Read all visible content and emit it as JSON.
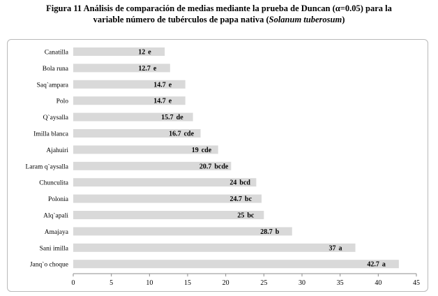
{
  "figure": {
    "title_line1": "Figura 11 Análisis de comparación de medias mediante la prueba de Duncan (α=0.05) para la",
    "title_line2": "variable número de tubérculos de papa nativa (",
    "title_species": "Solanum tuberosum",
    "title_close": ")"
  },
  "chart_data": {
    "type": "bar",
    "orientation": "horizontal",
    "title": "",
    "xlabel": "",
    "ylabel": "",
    "xlim": [
      0,
      45
    ],
    "xticks": [
      "0",
      "5",
      "10",
      "15",
      "20",
      "25",
      "30",
      "35",
      "40",
      "45"
    ],
    "grid": false,
    "bar_color": "#d9d9d9",
    "categories": [
      "Canatilla",
      "Bola runa",
      "Saq`ampara",
      "Polo",
      "Q`aysalla",
      "Imilla blanca",
      "Ajahuiri",
      "Laram q`aysalla",
      "Chunculita",
      "Polonia",
      "Alq`apali",
      "Amajaya",
      "Sani imilla",
      "Janq`o choque"
    ],
    "values": [
      12,
      12.7,
      14.7,
      14.7,
      15.7,
      16.7,
      19,
      20.7,
      24,
      24.7,
      25,
      28.7,
      37,
      42.7
    ],
    "value_labels": [
      "12",
      "12.7",
      "14.7",
      "14.7",
      "15.7",
      "16.7",
      "19",
      "20.7",
      "24",
      "24.7",
      "25",
      "28.7",
      "37",
      "42.7"
    ],
    "groups": [
      "e",
      "e",
      "e",
      "e",
      "de",
      "cde",
      "cde",
      "bcde",
      "bcd",
      "bc",
      "bc",
      "b",
      "a",
      "a"
    ]
  }
}
